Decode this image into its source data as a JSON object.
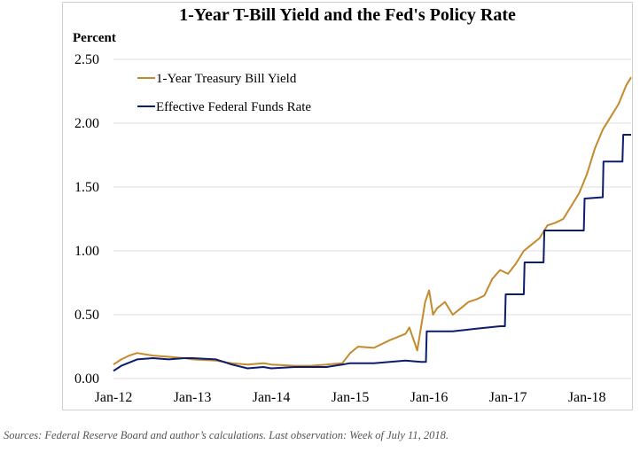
{
  "chart_data": {
    "type": "line",
    "title": "1-Year T-Bill Yield and the Fed's Policy Rate",
    "ylabel": "Percent",
    "xlabel": "",
    "x_ticks": [
      "Jan-12",
      "Jan-13",
      "Jan-14",
      "Jan-15",
      "Jan-16",
      "Jan-17",
      "Jan-18"
    ],
    "xlim": [
      2012.0,
      2018.56
    ],
    "ylim": [
      0,
      2.5
    ],
    "y_ticks": [
      "0.00",
      "0.50",
      "1.00",
      "1.50",
      "2.00",
      "2.50"
    ],
    "grid": true,
    "legend": "top-left",
    "series": [
      {
        "name": "1-Year Treasury Bill Yield",
        "color": "#C48A2C",
        "x": [
          2012.0,
          2012.1,
          2012.2,
          2012.3,
          2012.5,
          2012.7,
          2012.9,
          2013.0,
          2013.3,
          2013.5,
          2013.7,
          2013.9,
          2014.0,
          2014.3,
          2014.5,
          2014.7,
          2014.9,
          2015.0,
          2015.1,
          2015.3,
          2015.5,
          2015.7,
          2015.75,
          2015.85,
          2015.95,
          2016.0,
          2016.05,
          2016.1,
          2016.2,
          2016.3,
          2016.4,
          2016.5,
          2016.6,
          2016.7,
          2016.8,
          2016.9,
          2017.0,
          2017.1,
          2017.2,
          2017.3,
          2017.4,
          2017.5,
          2017.6,
          2017.7,
          2017.8,
          2017.9,
          2018.0,
          2018.1,
          2018.2,
          2018.3,
          2018.4,
          2018.5,
          2018.56
        ],
        "values": [
          0.11,
          0.15,
          0.18,
          0.2,
          0.18,
          0.17,
          0.16,
          0.15,
          0.14,
          0.12,
          0.11,
          0.12,
          0.11,
          0.1,
          0.1,
          0.11,
          0.12,
          0.2,
          0.25,
          0.24,
          0.3,
          0.35,
          0.4,
          0.22,
          0.6,
          0.69,
          0.5,
          0.55,
          0.6,
          0.5,
          0.55,
          0.6,
          0.62,
          0.65,
          0.78,
          0.85,
          0.82,
          0.9,
          1.0,
          1.05,
          1.1,
          1.2,
          1.22,
          1.25,
          1.35,
          1.45,
          1.6,
          1.8,
          1.95,
          2.05,
          2.15,
          2.3,
          2.36
        ]
      },
      {
        "name": "Effective Federal Funds Rate",
        "color": "#0D1C6E",
        "x": [
          2012.0,
          2012.1,
          2012.3,
          2012.5,
          2012.7,
          2012.9,
          2013.0,
          2013.3,
          2013.5,
          2013.7,
          2013.9,
          2014.0,
          2014.3,
          2014.5,
          2014.7,
          2014.9,
          2015.0,
          2015.3,
          2015.5,
          2015.7,
          2015.9,
          2015.96,
          2015.97,
          2016.3,
          2016.6,
          2016.9,
          2016.96,
          2016.97,
          2017.2,
          2017.21,
          2017.45,
          2017.46,
          2017.9,
          2017.96,
          2017.97,
          2018.2,
          2018.21,
          2018.45,
          2018.46,
          2018.56
        ],
        "values": [
          0.06,
          0.1,
          0.15,
          0.16,
          0.15,
          0.16,
          0.16,
          0.15,
          0.11,
          0.08,
          0.09,
          0.08,
          0.09,
          0.09,
          0.09,
          0.11,
          0.12,
          0.12,
          0.13,
          0.14,
          0.13,
          0.13,
          0.37,
          0.37,
          0.39,
          0.41,
          0.41,
          0.66,
          0.66,
          0.91,
          0.91,
          1.16,
          1.16,
          1.16,
          1.41,
          1.42,
          1.7,
          1.7,
          1.91,
          1.91
        ]
      }
    ]
  },
  "caption": "Sources: Federal Reserve Board and author’s calculations. Last observation: Week of July 11, 2018."
}
